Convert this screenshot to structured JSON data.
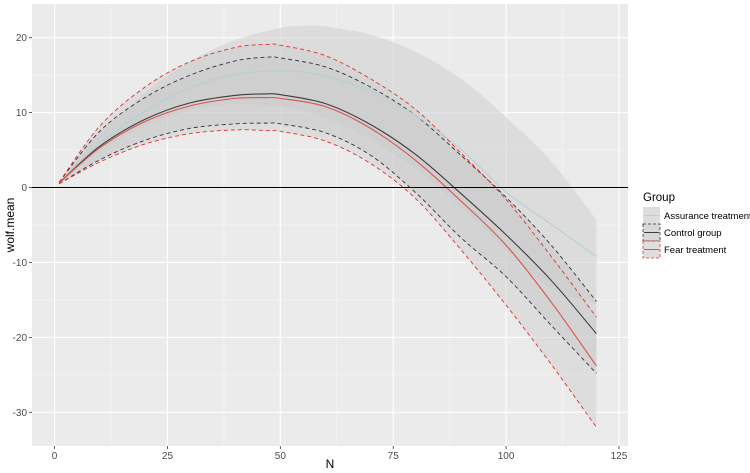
{
  "chart_data": {
    "type": "line",
    "xlabel": "N",
    "ylabel": "wolf.mean",
    "xlim": [
      -5,
      127
    ],
    "ylim": [
      -34.5,
      24.5
    ],
    "x_ticks": [
      0,
      25,
      50,
      75,
      100,
      125
    ],
    "y_ticks": [
      20,
      10,
      0,
      -10,
      -20,
      -30
    ],
    "x_tick_labels": [
      "0",
      "25",
      "50",
      "75",
      "100",
      "125"
    ],
    "y_tick_labels": [
      "20",
      "10",
      "0",
      "-10",
      "-20",
      "-30"
    ],
    "hline": 0,
    "grid": true,
    "legend": {
      "title": "Group",
      "placement": "right"
    },
    "series": [
      {
        "name": "Assurance treatment",
        "line_style": "solid",
        "line_color": "#b4d0d6",
        "band_color": "#d2d2d2",
        "band_opacity": 0.6,
        "x": [
          1,
          10,
          20,
          30,
          40,
          50,
          55,
          60,
          70,
          80,
          90,
          100,
          110,
          120
        ],
        "y": [
          0.6,
          5.8,
          10.2,
          13.3,
          15.1,
          15.6,
          15.4,
          14.9,
          12.9,
          9.6,
          5.1,
          -0.6,
          -4.9,
          -9.2
        ],
        "lower": [
          0.5,
          4.8,
          8.2,
          10.3,
          11.1,
          10.8,
          10.2,
          9.3,
          6.4,
          2.5,
          -2.6,
          -8.4,
          -13.5,
          -15.5
        ],
        "upper": [
          0.7,
          7.0,
          12.6,
          16.8,
          19.7,
          21.3,
          21.6,
          21.5,
          20.4,
          18.1,
          14.5,
          9.4,
          3.5,
          -4.3
        ]
      },
      {
        "name": "Control group",
        "line_style": "solid",
        "line_color": "#3c3c3c",
        "band_color": "#c8c8c8",
        "band_opacity": 0.5,
        "band_edge_color": "#333333",
        "band_edge_style": "dashed",
        "x": [
          1,
          10,
          20,
          30,
          40,
          47,
          50,
          60,
          70,
          80,
          90,
          100,
          110,
          120
        ],
        "y": [
          0.6,
          5.5,
          9.1,
          11.3,
          12.3,
          12.5,
          12.4,
          11.2,
          8.4,
          4.4,
          -0.8,
          -6.3,
          -12.4,
          -19.5
        ],
        "lower": [
          0.5,
          3.7,
          6.3,
          7.9,
          8.5,
          8.6,
          8.5,
          7.3,
          4.3,
          -0.7,
          -6.7,
          -11.9,
          -18.4,
          -24.8
        ],
        "upper": [
          0.7,
          7.5,
          12.0,
          15.0,
          16.9,
          17.4,
          17.3,
          16.1,
          13.4,
          9.6,
          4.3,
          -1.3,
          -7.7,
          -15.2
        ]
      },
      {
        "name": "Fear treatment",
        "line_style": "solid",
        "line_color": "#d9534f",
        "band_color": "#cccccc",
        "band_opacity": 0.45,
        "band_edge_color": "#e0302a",
        "band_edge_style": "dashed",
        "x": [
          1,
          10,
          20,
          30,
          40,
          47,
          50,
          60,
          70,
          80,
          90,
          100,
          110,
          120
        ],
        "y": [
          0.6,
          5.3,
          8.8,
          10.9,
          11.9,
          12.0,
          11.9,
          10.8,
          7.9,
          3.6,
          -1.8,
          -7.7,
          -15.3,
          -23.8
        ],
        "lower": [
          0.5,
          3.4,
          5.8,
          7.2,
          7.7,
          7.6,
          7.5,
          6.2,
          3.2,
          -1.5,
          -8.3,
          -15.7,
          -23.6,
          -32.0
        ],
        "upper": [
          0.7,
          8.2,
          13.4,
          16.8,
          18.7,
          19.1,
          19.0,
          17.6,
          14.5,
          10.4,
          4.6,
          -1.6,
          -9.2,
          -17.3
        ]
      }
    ]
  }
}
